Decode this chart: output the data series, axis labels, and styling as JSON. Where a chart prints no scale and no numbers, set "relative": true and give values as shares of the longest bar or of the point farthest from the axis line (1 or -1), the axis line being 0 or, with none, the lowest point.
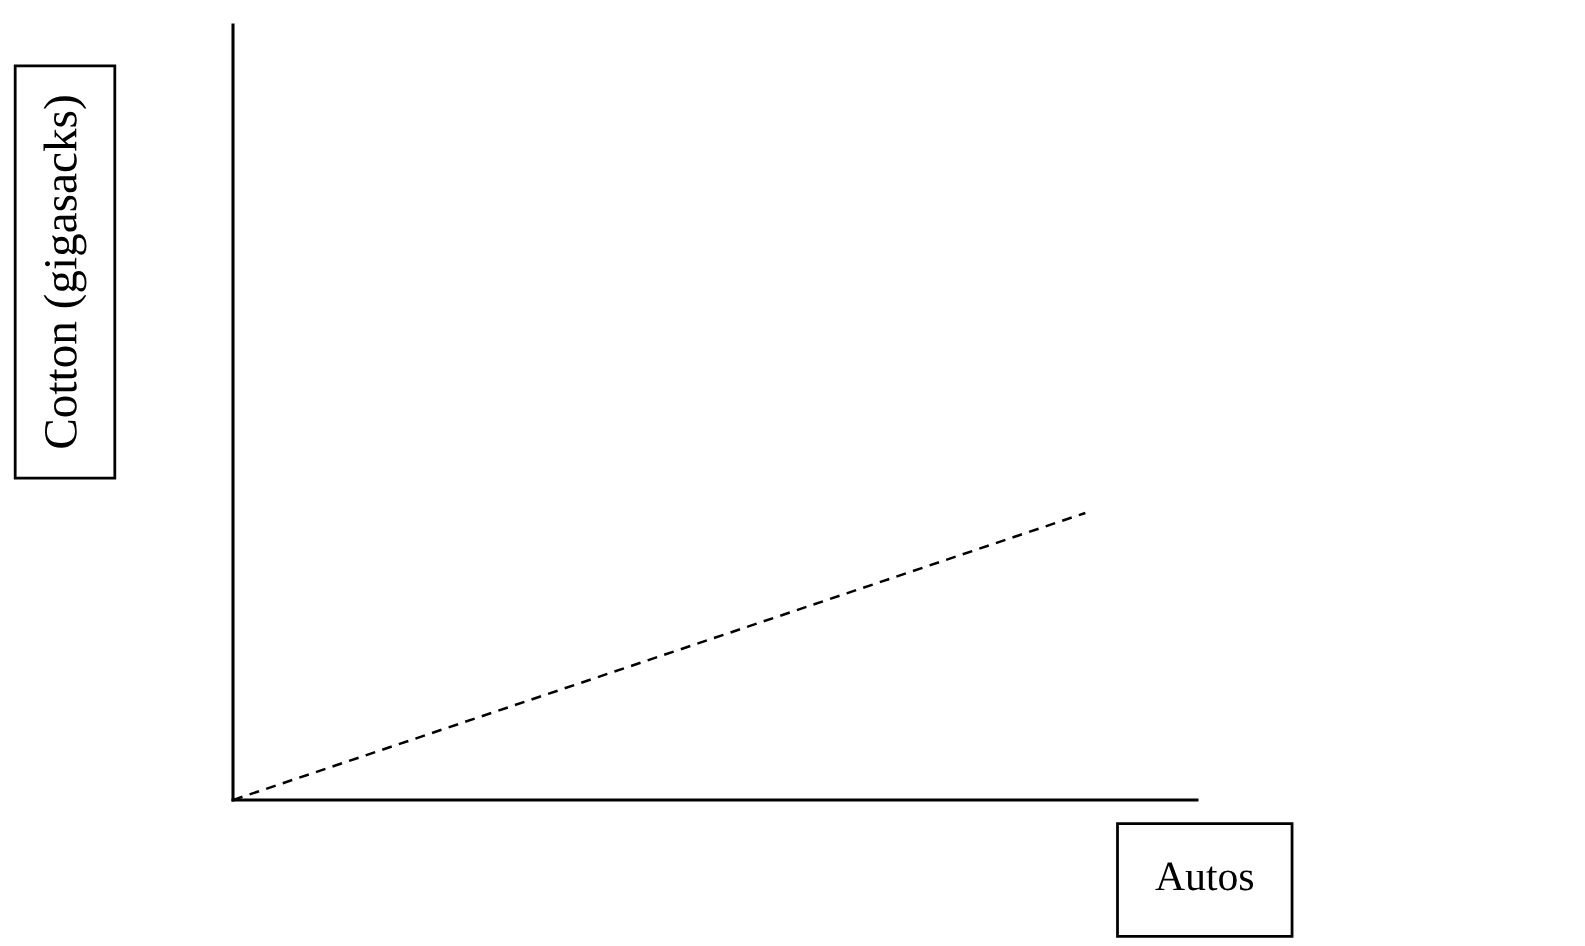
{
  "chart_data": {
    "type": "line",
    "relative": true,
    "xlabel": "Autos",
    "ylabel": "Cotton (gigasacks)",
    "categories": [
      null,
      null
    ],
    "series": [
      {
        "color": "#000000",
        "values": [
          0,
          1
        ],
        "line_style": "dashed"
      }
    ],
    "ref_lines": [
      {
        "axis": "y",
        "value": 0,
        "color": "#000000"
      }
    ],
    "marker": "none",
    "legend": false
  }
}
